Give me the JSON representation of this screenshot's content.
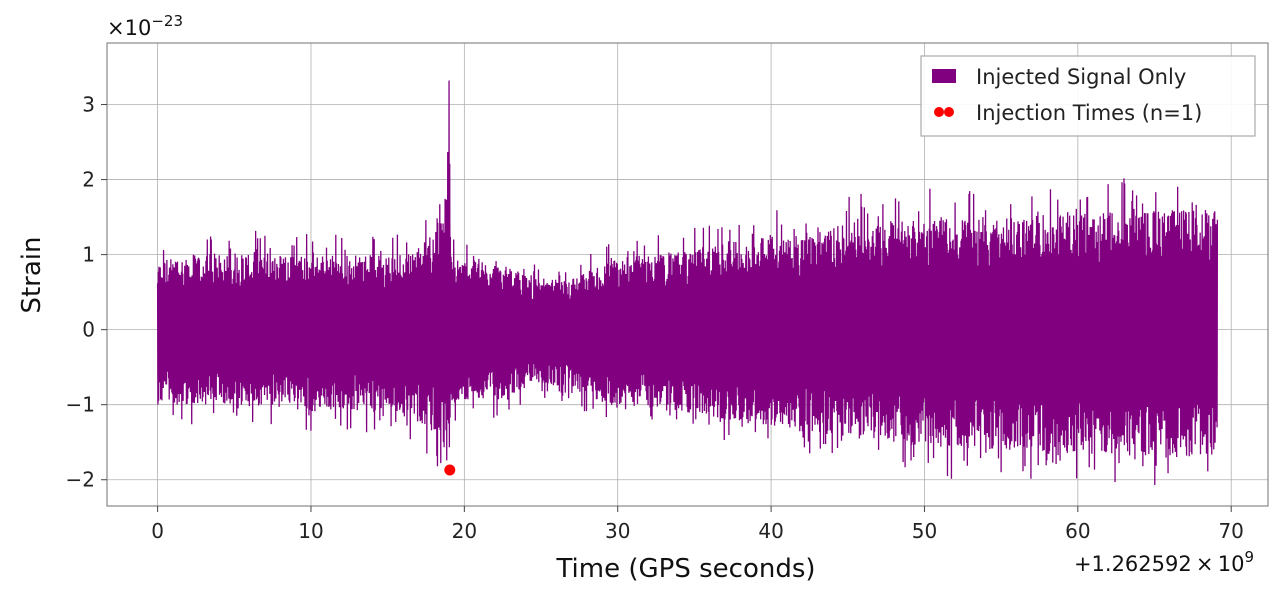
{
  "chart_data": {
    "type": "line",
    "title": "",
    "xlabel": "Time (GPS seconds)",
    "ylabel": "Strain",
    "xlim": [
      -3.3,
      72.4
    ],
    "ylim": [
      -2.35,
      3.82
    ],
    "x_ticks": [
      0,
      10,
      20,
      30,
      40,
      50,
      60,
      70
    ],
    "x_tick_labels": [
      "0",
      "10",
      "20",
      "30",
      "40",
      "50",
      "60",
      "70"
    ],
    "y_ticks": [
      -2,
      -1,
      0,
      1,
      2,
      3
    ],
    "y_tick_labels": [
      "−2",
      "−1",
      "0",
      "1",
      "2",
      "3"
    ],
    "x_offset_label": {
      "prefix": "+1.262592 × 10",
      "exponent": "9"
    },
    "y_scale_label": {
      "prefix": "×10",
      "exponent": "−23"
    },
    "grid": true,
    "legend_position": "top-right",
    "series": [
      {
        "name": "Injected Signal Only",
        "kind": "strain-envelope",
        "color": "#800080",
        "x_range": [
          0,
          69.1
        ],
        "envelope_x": [
          0,
          0.5,
          5,
          10,
          15,
          17,
          18,
          18.8,
          19.0,
          19.1,
          19.3,
          22,
          25,
          27,
          30,
          34,
          40,
          45,
          50,
          55,
          60,
          65,
          69.1
        ],
        "envelope_upper": [
          0.9,
          0.95,
          1.05,
          1.0,
          1.0,
          1.1,
          1.3,
          1.55,
          3.55,
          1.3,
          0.95,
          0.9,
          0.65,
          0.7,
          0.95,
          1.05,
          1.25,
          1.4,
          1.5,
          1.5,
          1.55,
          1.6,
          1.6
        ],
        "envelope_lower": [
          -1.0,
          -1.0,
          -1.0,
          -1.1,
          -1.1,
          -1.2,
          -1.4,
          -1.65,
          -2.05,
          -1.3,
          -1.0,
          -0.95,
          -0.7,
          -0.8,
          -1.0,
          -1.1,
          -1.3,
          -1.45,
          -1.55,
          -1.6,
          -1.65,
          -1.7,
          -1.7
        ]
      },
      {
        "name": "Injection Times (n=1)",
        "kind": "scatter",
        "color": "#ff0000",
        "points": [
          {
            "x": 19.05,
            "y": -1.87
          }
        ]
      }
    ]
  }
}
